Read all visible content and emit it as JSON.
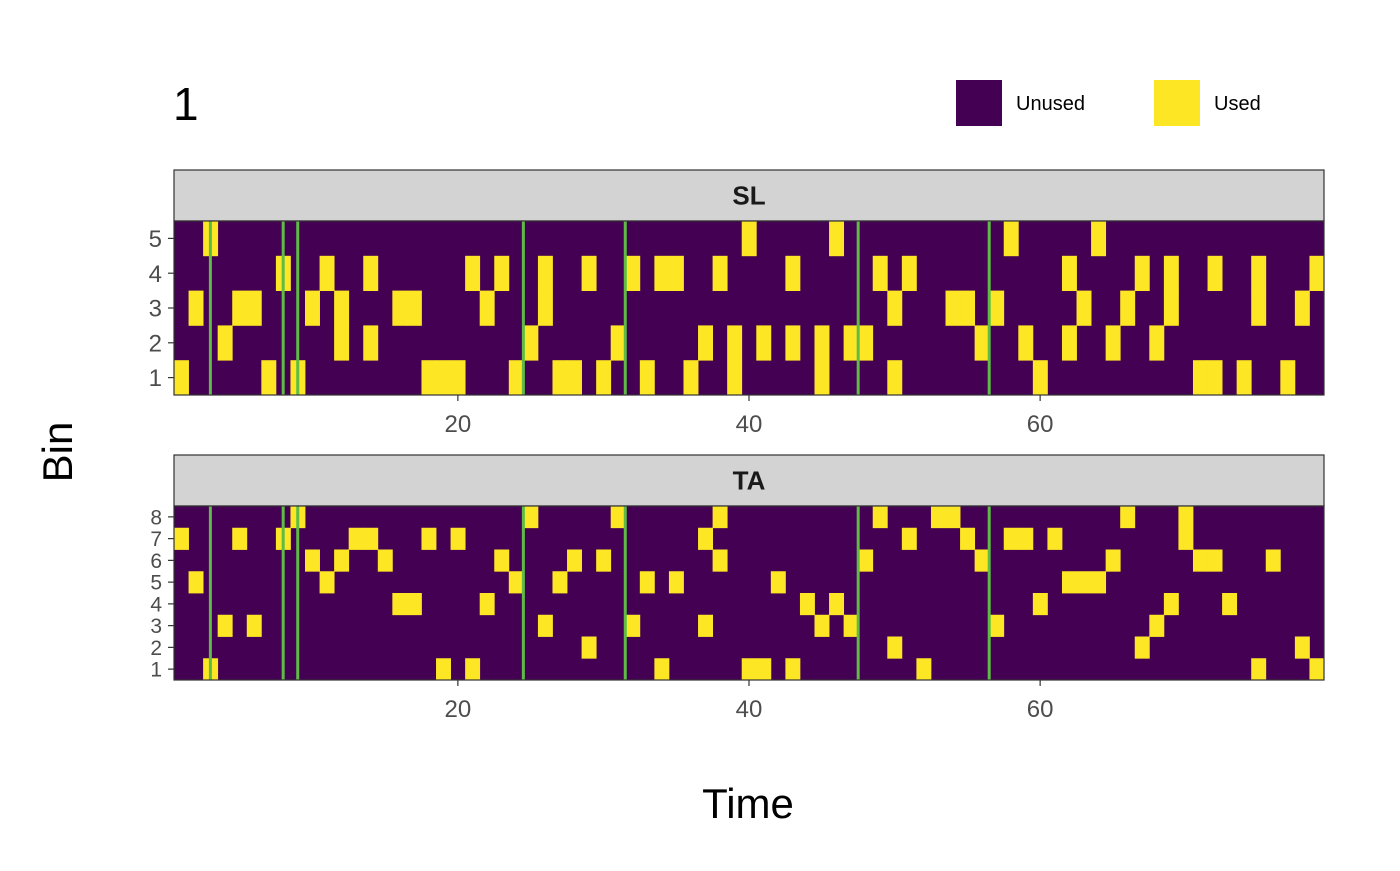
{
  "chart_data": {
    "type": "heatmap",
    "title": "1",
    "xlabel": "Time",
    "ylabel": "Bin",
    "xlim": [
      1,
      79
    ],
    "xticks": [
      20,
      40,
      60
    ],
    "legend": {
      "position": "top-right",
      "items": [
        {
          "label": "Unused",
          "color": "#440154"
        },
        {
          "label": "Used",
          "color": "#FDE725"
        }
      ]
    },
    "colors": {
      "unused": "#440154",
      "used": "#FDE725",
      "vline": "#5DBB46",
      "strip": "#D3D3D3"
    },
    "vlines": [
      3,
      8,
      9,
      24.5,
      31.5,
      47.5,
      56.5
    ],
    "panels": [
      {
        "name": "SL",
        "bins": [
          1,
          2,
          3,
          4,
          5
        ],
        "used": {
          "1": [
            1,
            7,
            9,
            18,
            19,
            20,
            24,
            27,
            28,
            30,
            33,
            36,
            39,
            45,
            50,
            60,
            71,
            72,
            74,
            77
          ],
          "2": [
            4,
            12,
            14,
            25,
            31,
            37,
            39,
            41,
            43,
            45,
            47,
            48,
            56,
            59,
            62,
            65,
            68
          ],
          "3": [
            2,
            5,
            6,
            10,
            12,
            16,
            17,
            22,
            26,
            50,
            54,
            55,
            57,
            63,
            66,
            69,
            75,
            78
          ],
          "4": [
            8,
            11,
            14,
            21,
            23,
            26,
            29,
            32,
            34,
            35,
            38,
            43,
            49,
            51,
            62,
            67,
            69,
            72,
            75,
            79
          ],
          "5": [
            3,
            40,
            46,
            58,
            64
          ]
        }
      },
      {
        "name": "TA",
        "bins": [
          1,
          2,
          3,
          4,
          5,
          6,
          7,
          8
        ],
        "used": {
          "1": [
            3,
            19,
            21,
            34,
            40,
            41,
            43,
            52,
            75,
            79
          ],
          "2": [
            29,
            50,
            67,
            78
          ],
          "3": [
            4,
            6,
            26,
            32,
            37,
            45,
            47,
            57,
            68
          ],
          "4": [
            16,
            17,
            22,
            44,
            46,
            60,
            69,
            73
          ],
          "5": [
            2,
            11,
            24,
            27,
            33,
            35,
            42,
            62,
            63,
            64
          ],
          "6": [
            10,
            12,
            15,
            23,
            28,
            30,
            38,
            48,
            56,
            65,
            71,
            72,
            76
          ],
          "7": [
            1,
            5,
            8,
            13,
            14,
            18,
            20,
            37,
            51,
            55,
            58,
            59,
            61,
            70
          ],
          "8": [
            9,
            25,
            31,
            38,
            49,
            53,
            54,
            66,
            70
          ]
        }
      }
    ]
  }
}
